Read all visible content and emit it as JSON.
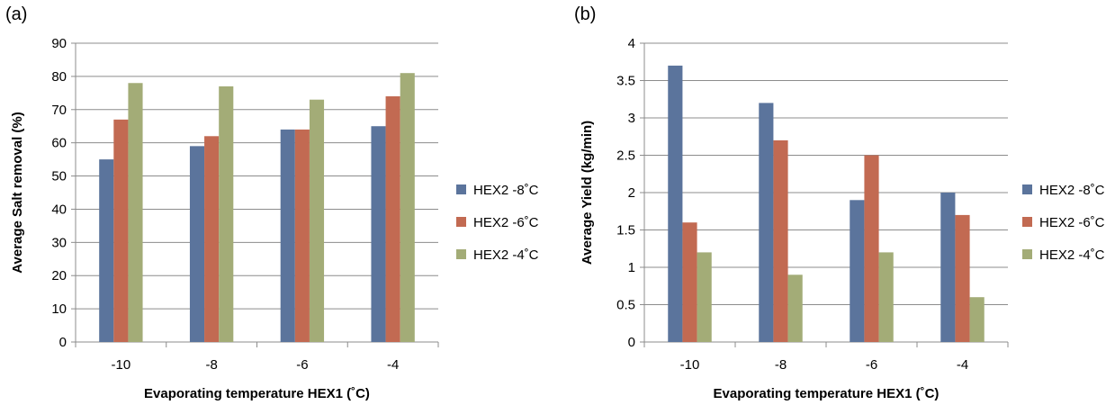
{
  "chart_data": [
    {
      "type": "bar",
      "panel_label": "(a)",
      "categories": [
        "-10",
        "-8",
        "-6",
        "-4"
      ],
      "xlabel": "Evaporating temperature HEX1 (˚C)",
      "ylabel": "Average Salt removal (%)",
      "ylim": [
        0,
        90
      ],
      "yticks": [
        0,
        10,
        20,
        30,
        40,
        50,
        60,
        70,
        80,
        90
      ],
      "ytick_labels": [
        "0",
        "10",
        "20",
        "30",
        "40",
        "50",
        "60",
        "70",
        "80",
        "90"
      ],
      "grid": "horizontal",
      "legend_position": "right",
      "series": [
        {
          "name": "HEX2 -8˚C",
          "color": "#5B749C",
          "values": [
            55,
            59,
            64,
            65
          ]
        },
        {
          "name": "HEX2 -6˚C",
          "color": "#C26A52",
          "values": [
            67,
            62,
            64,
            74
          ]
        },
        {
          "name": "HEX2 -4˚C",
          "color": "#A3AC77",
          "values": [
            78,
            77,
            73,
            81
          ]
        }
      ]
    },
    {
      "type": "bar",
      "panel_label": "(b)",
      "categories": [
        "-10",
        "-8",
        "-6",
        "-4"
      ],
      "xlabel": "Evaporating temperature HEX1 (˚C)",
      "ylabel": "Average Yield (kg/min)",
      "ylim": [
        0,
        4
      ],
      "yticks": [
        0,
        0.5,
        1,
        1.5,
        2,
        2.5,
        3,
        3.5,
        4
      ],
      "ytick_labels": [
        "0",
        "0.5",
        "1",
        "1.5",
        "2",
        "2.5",
        "3",
        "3.5",
        "4"
      ],
      "grid": "horizontal",
      "legend_position": "right",
      "series": [
        {
          "name": "HEX2 -8˚C",
          "color": "#5B749C",
          "values": [
            3.7,
            3.2,
            1.9,
            2.0
          ]
        },
        {
          "name": "HEX2 -6˚C",
          "color": "#C26A52",
          "values": [
            1.6,
            2.7,
            2.5,
            1.7
          ]
        },
        {
          "name": "HEX2 -4˚C",
          "color": "#A3AC77",
          "values": [
            1.2,
            0.9,
            1.2,
            0.6
          ]
        }
      ]
    }
  ]
}
